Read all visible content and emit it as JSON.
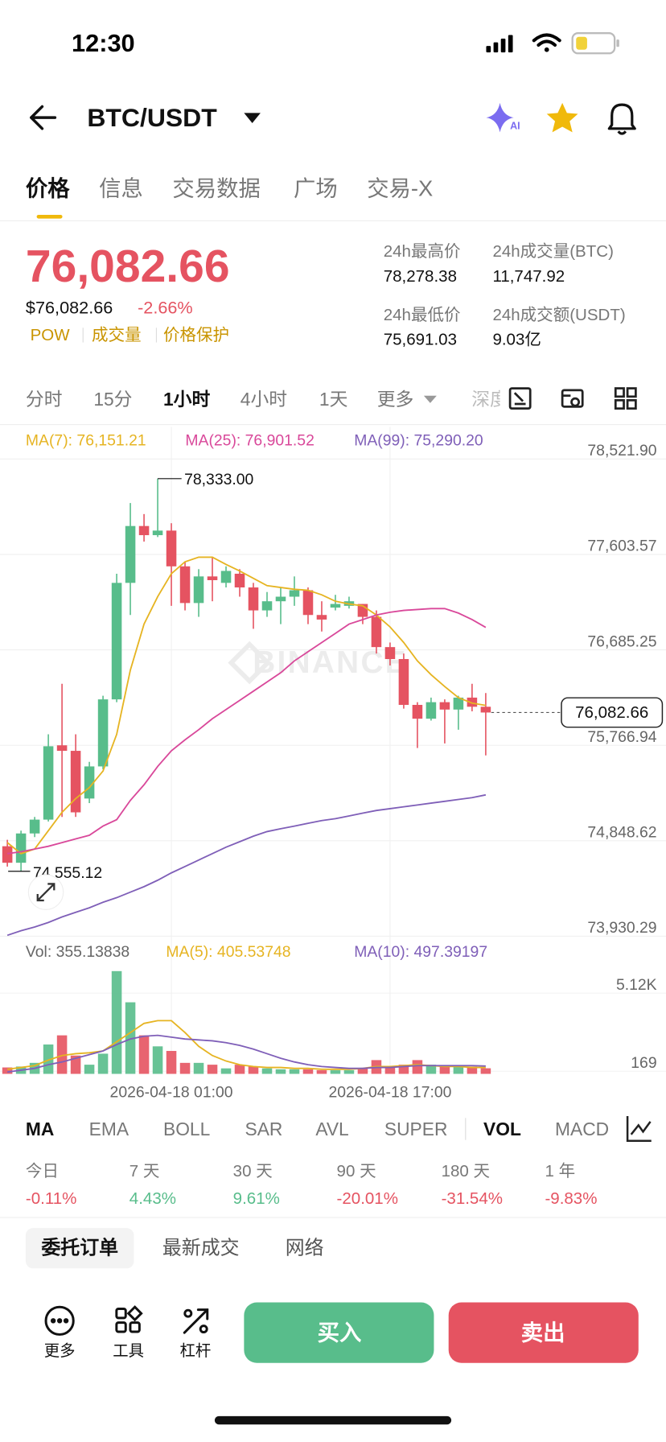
{
  "status_bar": {
    "time": "12:30"
  },
  "header": {
    "title": "BTC/USDT",
    "ai_label": "AI"
  },
  "tabs": [
    "价格",
    "信息",
    "交易数据",
    "广场",
    "交易-X"
  ],
  "price": {
    "last": "76,082.66",
    "usd": "$76,082.66",
    "change": "-2.66%",
    "tags": [
      "POW",
      "成交量",
      "价格保护"
    ]
  },
  "stats": [
    {
      "label": "24h最高价",
      "value": "78,278.38"
    },
    {
      "label": "24h成交量(BTC)",
      "value": "11,747.92"
    },
    {
      "label": "24h最低价",
      "value": "75,691.03"
    },
    {
      "label": "24h成交额(USDT)",
      "value": "9.03亿"
    }
  ],
  "intervals": [
    "分时",
    "15分",
    "1小时",
    "4小时",
    "1天",
    "更多",
    "深度"
  ],
  "chart_data": {
    "type": "candlestick",
    "categories": [
      null,
      null,
      null,
      null,
      null,
      null,
      null,
      null,
      null,
      null,
      null,
      null,
      "2026-04-18 01:00",
      null,
      null,
      null,
      null,
      null,
      null,
      null,
      null,
      null,
      null,
      null,
      null,
      null,
      null,
      null,
      "2026-04-18 17:00",
      null,
      null,
      null,
      null,
      null,
      null,
      null
    ],
    "open": [
      74796,
      74637,
      74919,
      75052,
      75767,
      75714,
      75255,
      75564,
      76209,
      77330,
      77877,
      77789,
      77833,
      77489,
      77136,
      77392,
      77330,
      77418,
      77286,
      77065,
      77153,
      77197,
      77259,
      77021,
      77092,
      77109,
      77127,
      77003,
      76712,
      76597,
      76156,
      76023,
      76182,
      76111,
      76226,
      76138
    ],
    "high": [
      74858,
      74946,
      75078,
      75873,
      76359,
      75873,
      75608,
      76244,
      77418,
      78098,
      77992,
      78333,
      77904,
      77533,
      77462,
      77577,
      77489,
      77462,
      77330,
      77242,
      77286,
      77392,
      77286,
      77153,
      77215,
      77197,
      77127,
      77065,
      76756,
      76650,
      76182,
      76226,
      76209,
      76244,
      76359,
      76270
    ],
    "low": [
      74600,
      74555.12,
      74884,
      75034,
      75078,
      75078,
      75211,
      75537,
      76182,
      77021,
      77727,
      77771,
      77109,
      77065,
      77003,
      77153,
      77286,
      77197,
      76888,
      77003,
      76933,
      77109,
      76933,
      76862,
      77065,
      77083,
      76933,
      76650,
      76535,
      76120,
      75741,
      76005,
      75785,
      75917,
      76094,
      75670
    ],
    "close": [
      74637,
      74919,
      75052,
      75758,
      75714,
      75122,
      75564,
      76209,
      77330,
      77877,
      77789,
      77833,
      77489,
      77136,
      77392,
      77356,
      77445,
      77286,
      77065,
      77153,
      77197,
      77259,
      77021,
      76977,
      77127,
      77153,
      77003,
      76712,
      76597,
      76156,
      76023,
      76182,
      76111,
      76226,
      76138,
      76082.66
    ],
    "up_color": "#58bd8b",
    "down_color": "#e55361",
    "ylim": [
      73930.29,
      78521.9
    ],
    "yticks": [
      {
        "value": 78521.9,
        "label": "78,521.90"
      },
      {
        "value": 77603.57,
        "label": "77,603.57"
      },
      {
        "value": 76685.25,
        "label": "76,685.25"
      },
      {
        "value": 75766.94,
        "label": "75,766.94"
      },
      {
        "value": 74848.62,
        "label": "74,848.62"
      },
      {
        "value": 73930.29,
        "label": "73,930.29"
      }
    ],
    "grid": true,
    "last_label": "76,082.66",
    "high_label": "78,333.00",
    "low_label": "74,555.12",
    "watermark": "BINANCE",
    "ma": [
      {
        "name": "MA(7): 76,151.21",
        "color": "#e6b422",
        "values": [
          74831,
          74725,
          74769,
          74946,
          75122,
          75255,
          75361,
          75520,
          75873,
          76491,
          76933,
          77197,
          77418,
          77533,
          77577,
          77577,
          77507,
          77445,
          77374,
          77303,
          77286,
          77268,
          77259,
          77215,
          77153,
          77127,
          77109,
          77021,
          76906,
          76756,
          76579,
          76447,
          76332,
          76226,
          76173,
          76151.21
        ]
      },
      {
        "name": "MA(25): 76,901.52",
        "color": "#d9489a",
        "values": [
          74725,
          74743,
          74769,
          74796,
          74831,
          74866,
          74902,
          74990,
          75052,
          75237,
          75387,
          75564,
          75714,
          75820,
          75917,
          76023,
          76111,
          76200,
          76288,
          76376,
          76465,
          76579,
          76668,
          76756,
          76844,
          76933,
          76977,
          77021,
          77047,
          77065,
          77074,
          77083,
          77083,
          77039,
          76977,
          76901.52
        ]
      },
      {
        "name": "MA(99): 75,290.20",
        "color": "#7f5fb8",
        "values": [
          73939,
          73983,
          74019,
          74063,
          74116,
          74160,
          74204,
          74257,
          74301,
          74354,
          74407,
          74469,
          74540,
          74601,
          74663,
          74725,
          74787,
          74840,
          74893,
          74937,
          74964,
          74990,
          75016,
          75043,
          75061,
          75087,
          75114,
          75140,
          75158,
          75175,
          75193,
          75211,
          75228,
          75246,
          75264,
          75290.2
        ]
      }
    ],
    "volume": {
      "name": "Vol: 355.13838",
      "values": [
        407,
        465,
        698,
        1862,
        2443,
        1163,
        582,
        1280,
        6515,
        4538,
        2443,
        1745,
        1454,
        698,
        698,
        582,
        349,
        582,
        465,
        349,
        291,
        291,
        291,
        233,
        233,
        233,
        349,
        873,
        465,
        582,
        873,
        582,
        465,
        465,
        465,
        355.13838
      ],
      "ylim": [
        0,
        5120
      ],
      "yticks": [
        {
          "value": 5120,
          "label": "5.12K"
        },
        169
      ],
      "ma": [
        {
          "name": "MA(5): 405.53748",
          "color": "#e6b422",
          "values": [
            291,
            407,
            524,
            873,
            1163,
            1280,
            1338,
            1454,
            2036,
            2618,
            3200,
            3374,
            3374,
            2618,
            1745,
            1163,
            814,
            582,
            465,
            407,
            407,
            349,
            349,
            291,
            291,
            291,
            349,
            465,
            465,
            524,
            582,
            524,
            465,
            465,
            407,
            405.53748
          ]
        },
        {
          "name": "MA(10): 497.39197",
          "color": "#7f5fb8",
          "values": [
            116,
            233,
            349,
            582,
            756,
            989,
            1222,
            1454,
            1862,
            2211,
            2385,
            2443,
            2327,
            2211,
            2153,
            2094,
            1978,
            1803,
            1571,
            1280,
            989,
            756,
            582,
            465,
            407,
            349,
            349,
            407,
            407,
            465,
            524,
            524,
            524,
            524,
            524,
            497.39197
          ]
        }
      ]
    }
  },
  "indicators": [
    "MA",
    "EMA",
    "BOLL",
    "SAR",
    "AVL",
    "SUPER",
    "VOL",
    "MACD"
  ],
  "returns": {
    "labels": [
      "今日",
      "7 天",
      "30 天",
      "90 天",
      "180 天",
      "1 年"
    ],
    "values": [
      "-0.11%",
      "4.43%",
      "9.61%",
      "-20.01%",
      "-31.54%",
      "-9.83%"
    ]
  },
  "order_tabs": [
    "委托订单",
    "最新成交",
    "网络"
  ],
  "toolbar": [
    "更多",
    "工具",
    "杠杆"
  ],
  "buttons": {
    "buy": "买入",
    "sell": "卖出"
  }
}
